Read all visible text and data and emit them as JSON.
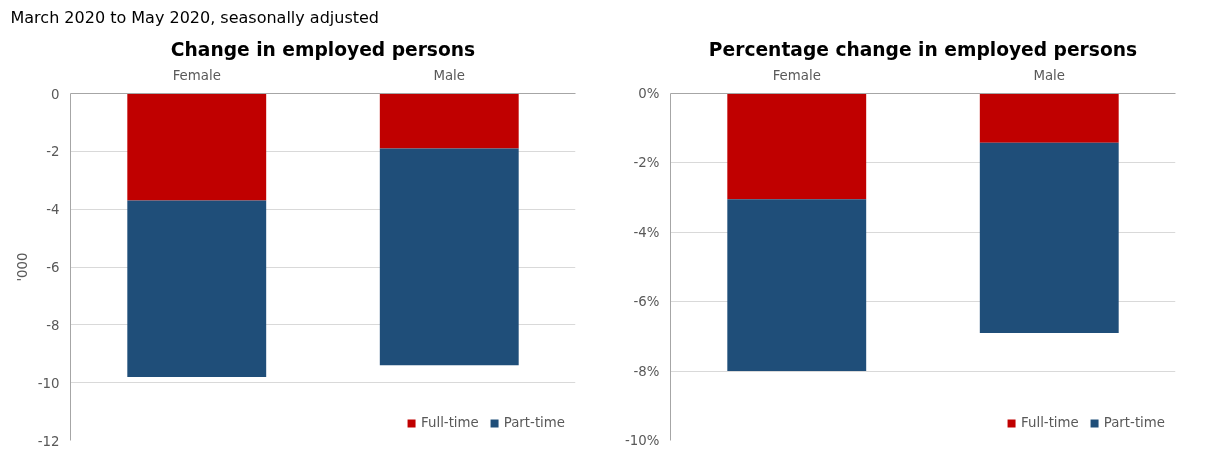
{
  "chart_data": [
    {
      "type": "bar",
      "stacked": true,
      "title": "Change in employed persons",
      "subtitle": "March 2020 to May 2020, seasonally adjusted",
      "ylabel": "'000",
      "categories": [
        "Female",
        "Male"
      ],
      "series": [
        {
          "name": "Full-time",
          "color": "#c00000",
          "values": [
            -3.7,
            -1.9
          ]
        },
        {
          "name": "Part-time",
          "color": "#1f4e79",
          "values": [
            -6.1,
            -7.5
          ]
        }
      ],
      "ylim": [
        -12,
        0
      ],
      "yticks": [
        0,
        -2,
        -4,
        -6,
        -8,
        -10,
        -12
      ],
      "grid": "y",
      "legend": "bottom right"
    },
    {
      "type": "bar",
      "stacked": true,
      "title": "Percentage change in employed persons",
      "categories": [
        "Female",
        "Male"
      ],
      "series": [
        {
          "name": "Full-time",
          "color": "#c00000",
          "values": [
            -3.05,
            -1.42
          ]
        },
        {
          "name": "Part-time",
          "color": "#1f4e79",
          "values": [
            -4.95,
            -5.48
          ]
        }
      ],
      "ylim": [
        -10,
        0
      ],
      "yticks": [
        {
          "value": 0,
          "label": "0%"
        },
        {
          "value": -2,
          "label": "-2%"
        },
        {
          "value": -4,
          "label": "-4%"
        },
        {
          "value": -6,
          "label": "-6%"
        },
        {
          "value": -8,
          "label": "-8%"
        },
        {
          "value": -10,
          "label": "-10%"
        }
      ],
      "grid": "y",
      "legend": "bottom right"
    }
  ]
}
